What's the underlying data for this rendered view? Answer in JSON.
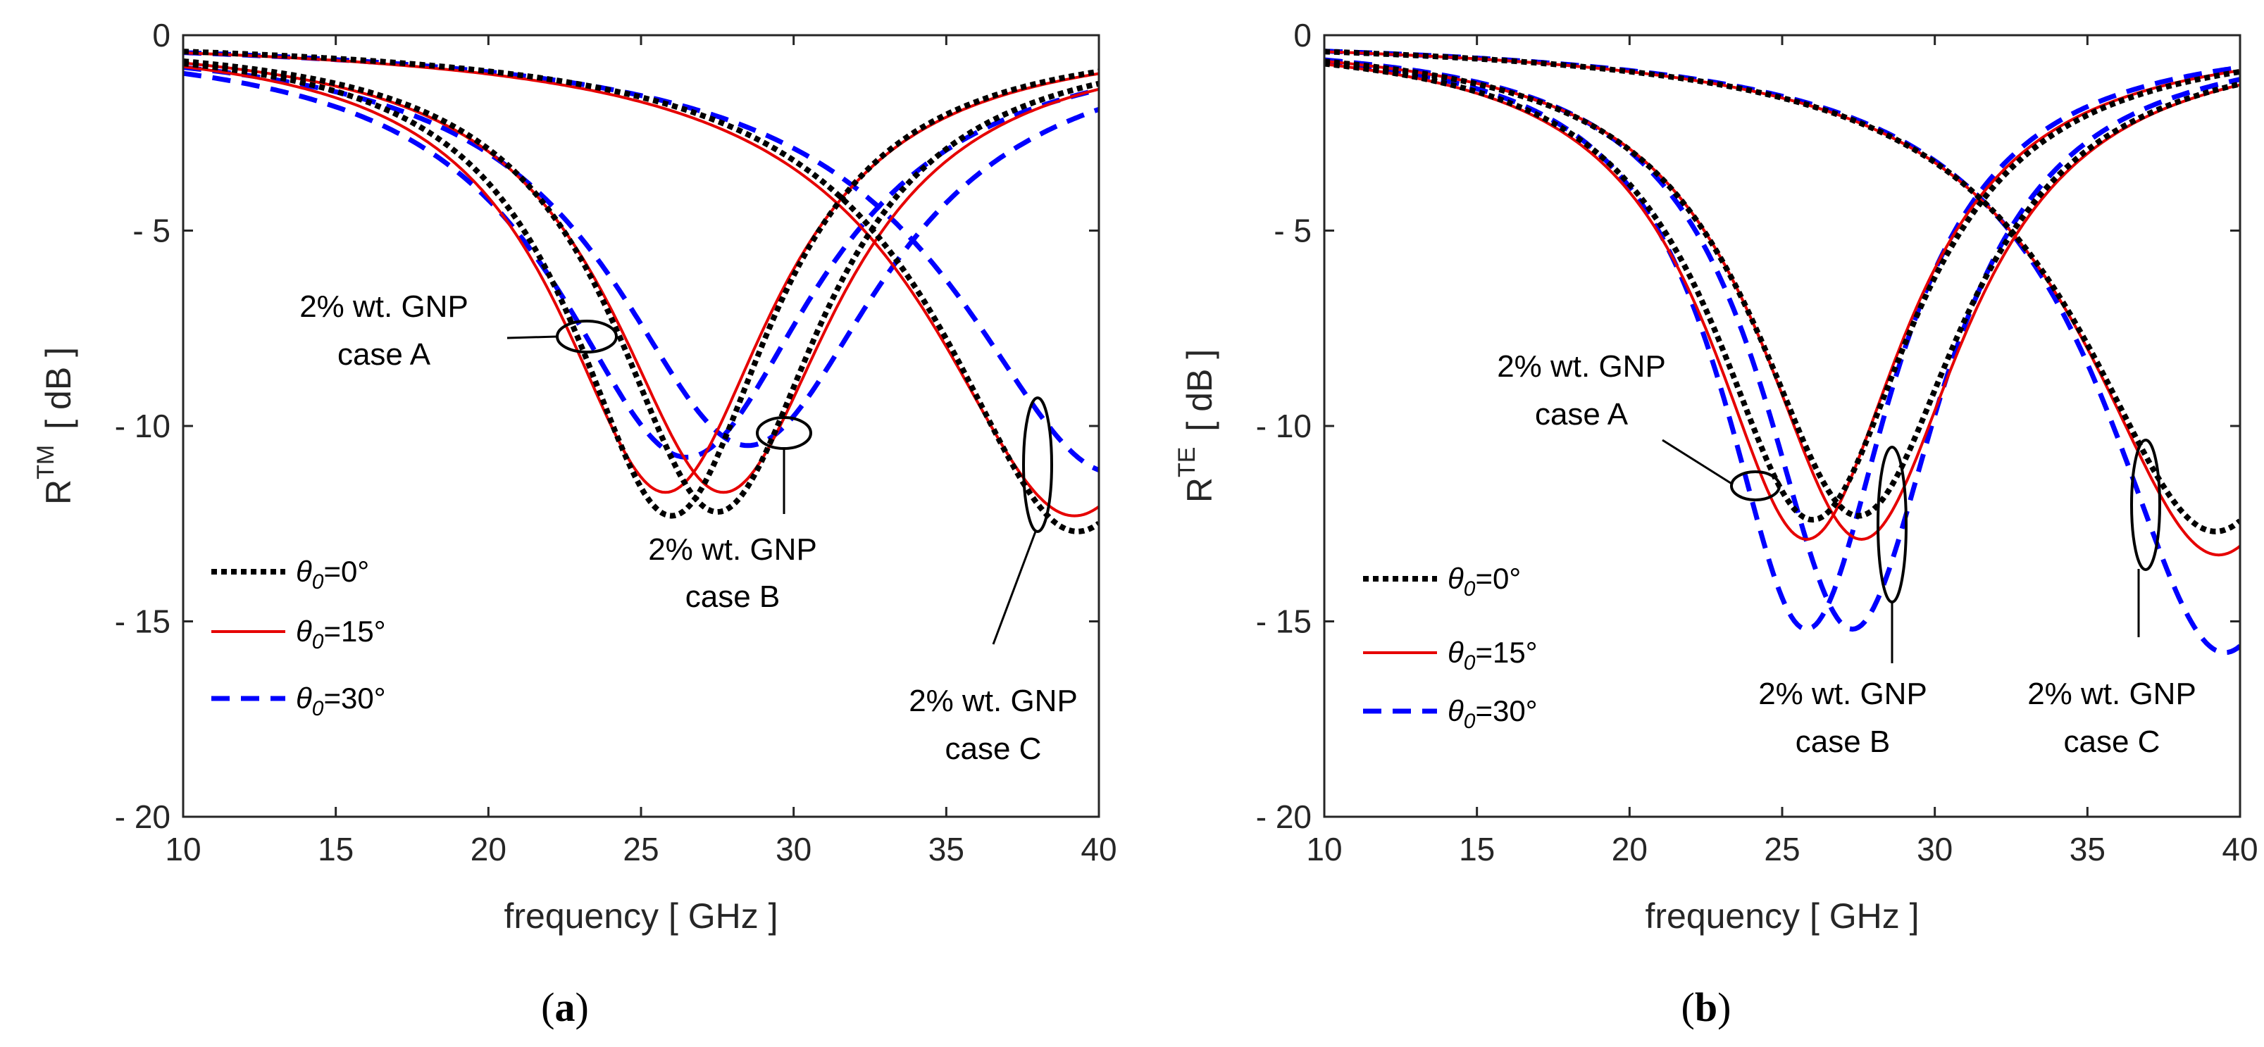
{
  "panel_labels": [
    {
      "open": "(",
      "letter": "a",
      "close": ")"
    },
    {
      "open": "(",
      "letter": "b",
      "close": ")"
    }
  ],
  "chart_data": [
    {
      "type": "line",
      "panel": "a",
      "xlabel": "frequency [ GHz ]",
      "ylabel_main": "R",
      "ylabel_sup": "TM",
      "ylabel_unit": "[ dB ]",
      "xlim": [
        10,
        40
      ],
      "ylim": [
        -20,
        0
      ],
      "xticks": [
        10,
        15,
        20,
        25,
        30,
        35,
        40
      ],
      "yticks": [
        0,
        -5,
        -10,
        -15,
        -20
      ],
      "ytick_labels": [
        "0",
        "- 5",
        "- 10",
        "- 15",
        "- 20"
      ],
      "grid": false,
      "legend_position": "bottom-left",
      "legend": [
        {
          "label_pre": "θ",
          "label_sub": "0",
          "label_post": "=0°",
          "color": "#000000",
          "style": "dotted"
        },
        {
          "label_pre": "θ",
          "label_sub": "0",
          "label_post": "=15°",
          "color": "#e60000",
          "style": "solid"
        },
        {
          "label_pre": "θ",
          "label_sub": "0",
          "label_post": "=30°",
          "color": "#0000ff",
          "style": "dashed"
        }
      ],
      "series": [
        {
          "name": "case A θ0=0°",
          "legend_index": 0,
          "f0": 26.0,
          "depth": 12.3,
          "width": 4.0
        },
        {
          "name": "case A θ0=15°",
          "legend_index": 1,
          "f0": 25.8,
          "depth": 11.7,
          "width": 4.3
        },
        {
          "name": "case A θ0=30°",
          "legend_index": 2,
          "f0": 26.5,
          "depth": 10.8,
          "width": 5.2
        },
        {
          "name": "case B θ0=0°",
          "legend_index": 0,
          "f0": 27.5,
          "depth": 12.2,
          "width": 4.2
        },
        {
          "name": "case B θ0=15°",
          "legend_index": 1,
          "f0": 27.7,
          "depth": 11.7,
          "width": 4.5
        },
        {
          "name": "case B θ0=30°",
          "legend_index": 2,
          "f0": 28.5,
          "depth": 10.5,
          "width": 5.4
        },
        {
          "name": "case C θ0=0°",
          "legend_index": 0,
          "f0": 39.3,
          "depth": 12.7,
          "width": 5.4
        },
        {
          "name": "case C θ0=15°",
          "legend_index": 1,
          "f0": 39.2,
          "depth": 12.3,
          "width": 5.7
        },
        {
          "name": "case C θ0=30°",
          "legend_index": 2,
          "f0": 40.5,
          "depth": 11.2,
          "width": 6.2
        }
      ],
      "annotations": [
        {
          "line1": "2% wt. GNP",
          "line2": "case A",
          "ellipse_center": [
            23.3,
            -7.6
          ]
        },
        {
          "line1": "2% wt. GNP",
          "line2": "case B",
          "ellipse_center": [
            29.7,
            -10.2
          ]
        },
        {
          "line1": "2% wt. GNP",
          "line2": "case C",
          "ellipse_center": [
            38.0,
            -11.0
          ]
        }
      ]
    },
    {
      "type": "line",
      "panel": "b",
      "xlabel": "frequency [ GHz ]",
      "ylabel_main": "R",
      "ylabel_sup": "TE",
      "ylabel_unit": "[ dB ]",
      "xlim": [
        10,
        40
      ],
      "ylim": [
        -20,
        0
      ],
      "xticks": [
        10,
        15,
        20,
        25,
        30,
        35,
        40
      ],
      "yticks": [
        0,
        -5,
        -10,
        -15,
        -20
      ],
      "ytick_labels": [
        "0",
        "- 5",
        "- 10",
        "- 15",
        "- 20"
      ],
      "grid": false,
      "legend_position": "bottom-left",
      "legend": [
        {
          "label_pre": "θ",
          "label_sub": "0",
          "label_post": "=0°",
          "color": "#000000",
          "style": "dotted"
        },
        {
          "label_pre": "θ",
          "label_sub": "0",
          "label_post": "=15°",
          "color": "#e60000",
          "style": "solid"
        },
        {
          "label_pre": "θ",
          "label_sub": "0",
          "label_post": "=30°",
          "color": "#0000ff",
          "style": "dashed"
        }
      ],
      "series": [
        {
          "name": "case A θ0=0°",
          "legend_index": 0,
          "f0": 26.0,
          "depth": 12.4,
          "width": 4.0
        },
        {
          "name": "case A θ0=15°",
          "legend_index": 1,
          "f0": 25.8,
          "depth": 12.9,
          "width": 3.9
        },
        {
          "name": "case A θ0=30°",
          "legend_index": 2,
          "f0": 25.8,
          "depth": 15.2,
          "width": 3.4
        },
        {
          "name": "case B θ0=0°",
          "legend_index": 0,
          "f0": 27.5,
          "depth": 12.3,
          "width": 4.2
        },
        {
          "name": "case B θ0=15°",
          "legend_index": 1,
          "f0": 27.6,
          "depth": 12.9,
          "width": 4.1
        },
        {
          "name": "case B θ0=30°",
          "legend_index": 2,
          "f0": 27.3,
          "depth": 15.2,
          "width": 3.6
        },
        {
          "name": "case C θ0=0°",
          "legend_index": 0,
          "f0": 39.2,
          "depth": 12.7,
          "width": 5.4
        },
        {
          "name": "case C θ0=15°",
          "legend_index": 1,
          "f0": 39.3,
          "depth": 13.3,
          "width": 5.3
        },
        {
          "name": "case C θ0=30°",
          "legend_index": 2,
          "f0": 39.5,
          "depth": 15.8,
          "width": 4.8
        }
      ],
      "annotations": [
        {
          "line1": "2% wt. GNP",
          "line2": "case A",
          "ellipse_center": [
            24.4,
            -11.5
          ]
        },
        {
          "line1": "2% wt. GNP",
          "line2": "case B",
          "ellipse_center": [
            28.7,
            -12.5
          ]
        },
        {
          "line1": "2% wt. GNP",
          "line2": "case C",
          "ellipse_center": [
            37.0,
            -12.0
          ]
        }
      ]
    }
  ]
}
